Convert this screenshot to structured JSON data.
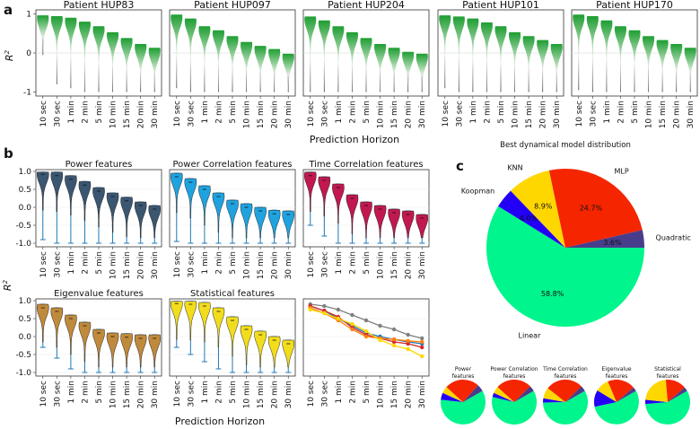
{
  "colors": {
    "linear": "#00f58c",
    "quadratic": "#483d8b",
    "mlp": "#f52500",
    "knn": "#ffd700",
    "koopman": "#2300f5",
    "power": "#3b5670",
    "powercorr": "#1fa3e0",
    "timecorr": "#c2184f",
    "eigen": "#c08a3c",
    "stat": "#f2dd1c",
    "green_top": "#1e9e32",
    "gray_bottom": "#3a3a3a",
    "whisker": "#1f77b4"
  },
  "panel_labels": {
    "a": "a",
    "b": "b",
    "c": "c"
  },
  "horizons": [
    "10 sec",
    "30 sec",
    "1 min",
    "2 min",
    "5 min",
    "10 min",
    "15 min",
    "20 min",
    "30 min"
  ],
  "r2_label": "R²",
  "r2_label_base": "R",
  "r2_label_sup": "2",
  "xlabel": "Prediction Horizon",
  "chart_data": [
    {
      "type": "violin",
      "panel": "a",
      "ylabel": "R²",
      "xlabel": "Prediction Horizon",
      "ylim": [
        -1.1,
        1.1
      ],
      "yticks": [
        -1,
        0,
        1
      ],
      "categories": [
        "10 sec",
        "30 sec",
        "1 min",
        "2 min",
        "5 min",
        "10 min",
        "15 min",
        "20 min",
        "30 min"
      ],
      "series": [
        {
          "name": "Patient HUP83",
          "medians": [
            0.88,
            0.86,
            0.82,
            0.72,
            0.6,
            0.45,
            0.3,
            0.15,
            0.05
          ],
          "mins": [
            -0.05,
            -0.8,
            -0.9,
            -1.0,
            -1.0,
            -1.0,
            -1.0,
            -1.0,
            -1.0
          ]
        },
        {
          "name": "Patient HUP097",
          "medians": [
            0.9,
            0.8,
            0.6,
            0.5,
            0.35,
            0.2,
            0.1,
            0.02,
            -0.1
          ],
          "mins": [
            -0.9,
            -1.0,
            -1.0,
            -1.0,
            -1.0,
            -1.0,
            -1.0,
            -1.0,
            -1.0
          ]
        },
        {
          "name": "Patient HUP204",
          "medians": [
            0.85,
            0.75,
            0.6,
            0.45,
            0.3,
            0.15,
            0.05,
            -0.05,
            -0.1
          ],
          "mins": [
            -1.0,
            -1.0,
            -1.0,
            -1.0,
            -1.0,
            -1.0,
            -1.0,
            -1.0,
            -1.0
          ]
        },
        {
          "name": "Patient HUP101",
          "medians": [
            0.88,
            0.85,
            0.8,
            0.7,
            0.6,
            0.45,
            0.35,
            0.25,
            0.15
          ],
          "mins": [
            -0.9,
            -1.0,
            -1.0,
            -1.0,
            -1.0,
            -1.0,
            -1.0,
            -1.0,
            -1.0
          ]
        },
        {
          "name": "Patient HUP170",
          "medians": [
            0.9,
            0.86,
            0.75,
            0.6,
            0.5,
            0.35,
            0.25,
            0.15,
            0.05
          ],
          "mins": [
            -0.95,
            -1.0,
            -1.0,
            -1.0,
            -1.0,
            -1.0,
            -1.0,
            -1.0,
            -1.0
          ]
        }
      ]
    },
    {
      "type": "violin",
      "panel": "b",
      "ylabel": "R²",
      "xlabel": "Prediction Horizon",
      "ylim": [
        -1.1,
        1.05
      ],
      "yticks": [
        -1.0,
        -0.5,
        0.0,
        0.5,
        1.0
      ],
      "categories": [
        "10 sec",
        "30 sec",
        "1 min",
        "2 min",
        "5 min",
        "10 min",
        "15 min",
        "20 min",
        "30 min"
      ],
      "series": [
        {
          "name": "Power features",
          "color": "power",
          "medians": [
            0.92,
            0.88,
            0.78,
            0.62,
            0.45,
            0.3,
            0.18,
            0.05,
            -0.05
          ],
          "mins": [
            -0.9,
            -1.0,
            -1.0,
            -1.0,
            -1.0,
            -1.0,
            -1.0,
            -1.0,
            -1.0
          ]
        },
        {
          "name": "Power Correlation features",
          "color": "powercorr",
          "medians": [
            0.85,
            0.7,
            0.5,
            0.3,
            0.1,
            0.0,
            -0.1,
            -0.18,
            -0.2
          ],
          "mins": [
            -0.95,
            -1.0,
            -1.0,
            -1.0,
            -1.0,
            -1.0,
            -1.0,
            -1.0,
            -1.0
          ]
        },
        {
          "name": "Time Correlation features",
          "color": "timecorr",
          "medians": [
            0.88,
            0.75,
            0.55,
            0.25,
            0.05,
            -0.05,
            -0.15,
            -0.2,
            -0.3
          ],
          "mins": [
            -0.5,
            -0.8,
            -1.0,
            -1.0,
            -1.0,
            -1.0,
            -1.0,
            -1.0,
            -1.0
          ]
        },
        {
          "name": "Eigenvalue features",
          "color": "eigen",
          "medians": [
            0.8,
            0.7,
            0.5,
            0.3,
            0.1,
            0.0,
            -0.02,
            -0.05,
            -0.05
          ],
          "mins": [
            -0.3,
            -0.6,
            -0.9,
            -1.0,
            -1.0,
            -1.0,
            -1.0,
            -1.0,
            -1.0
          ]
        },
        {
          "name": "Statistical features",
          "color": "stat",
          "medians": [
            0.92,
            0.9,
            0.85,
            0.7,
            0.45,
            0.2,
            0.05,
            -0.1,
            -0.2
          ],
          "mins": [
            -0.3,
            -0.5,
            -0.7,
            -0.9,
            -1.0,
            -1.0,
            -1.0,
            -1.0,
            -1.0
          ]
        }
      ]
    },
    {
      "type": "line",
      "panel": "b-summary",
      "ylim": [
        -1.1,
        1.05
      ],
      "categories": [
        "10 sec",
        "30 sec",
        "1 min",
        "2 min",
        "5 min",
        "10 min",
        "15 min",
        "20 min",
        "30 min"
      ],
      "series": [
        {
          "color": "#7f7f7f",
          "values": [
            0.9,
            0.85,
            0.75,
            0.6,
            0.45,
            0.3,
            0.2,
            0.05,
            -0.05
          ]
        },
        {
          "color": "#1f77b4",
          "values": [
            0.85,
            0.72,
            0.5,
            0.3,
            0.1,
            0.0,
            -0.08,
            -0.15,
            -0.2
          ]
        },
        {
          "color": "#d62728",
          "values": [
            0.85,
            0.72,
            0.55,
            0.25,
            0.05,
            -0.05,
            -0.15,
            -0.2,
            -0.3
          ]
        },
        {
          "color": "#ff7f0e",
          "values": [
            0.8,
            0.65,
            0.45,
            0.2,
            0.0,
            -0.05,
            -0.08,
            -0.12,
            -0.15
          ]
        },
        {
          "color": "#ffd700",
          "values": [
            0.75,
            0.65,
            0.5,
            0.35,
            0.15,
            -0.1,
            -0.25,
            -0.35,
            -0.55
          ]
        }
      ]
    },
    {
      "type": "pie",
      "panel": "c",
      "title": "Best dynamical model distribution",
      "slices": [
        {
          "label": "Linear",
          "value": 58.8,
          "pct": "58.8%",
          "color": "linear"
        },
        {
          "label": "Koopman",
          "value": 4.0,
          "pct": "4.0%",
          "color": "koopman"
        },
        {
          "label": "KNN",
          "value": 8.9,
          "pct": "8.9%",
          "color": "knn"
        },
        {
          "label": "MLP",
          "value": 24.7,
          "pct": "24.7%",
          "color": "mlp"
        },
        {
          "label": "Quadratic",
          "value": 3.6,
          "pct": "3.6%",
          "color": "quadratic"
        }
      ]
    },
    {
      "type": "pie",
      "panel": "c-small",
      "pies": [
        {
          "title": [
            "Power",
            "features"
          ],
          "slices": [
            {
              "color": "linear",
              "value": 60
            },
            {
              "color": "koopman",
              "value": 5
            },
            {
              "color": "knn",
              "value": 5
            },
            {
              "color": "mlp",
              "value": 25
            },
            {
              "color": "quadratic",
              "value": 5
            }
          ]
        },
        {
          "title": [
            "Power Correlation",
            "features"
          ],
          "slices": [
            {
              "color": "linear",
              "value": 62
            },
            {
              "color": "koopman",
              "value": 3
            },
            {
              "color": "knn",
              "value": 5
            },
            {
              "color": "mlp",
              "value": 26
            },
            {
              "color": "quadratic",
              "value": 4
            }
          ]
        },
        {
          "title": [
            "Time Correlation",
            "features"
          ],
          "slices": [
            {
              "color": "linear",
              "value": 58
            },
            {
              "color": "koopman",
              "value": 3
            },
            {
              "color": "knn",
              "value": 8
            },
            {
              "color": "mlp",
              "value": 27
            },
            {
              "color": "quadratic",
              "value": 4
            }
          ]
        },
        {
          "title": [
            "Eigenvalue",
            "features"
          ],
          "slices": [
            {
              "color": "linear",
              "value": 55
            },
            {
              "color": "koopman",
              "value": 12
            },
            {
              "color": "knn",
              "value": 10
            },
            {
              "color": "mlp",
              "value": 20
            },
            {
              "color": "quadratic",
              "value": 3
            }
          ]
        },
        {
          "title": [
            "Statistical",
            "features"
          ],
          "slices": [
            {
              "color": "linear",
              "value": 57
            },
            {
              "color": "koopman",
              "value": 3
            },
            {
              "color": "knn",
              "value": 22
            },
            {
              "color": "mlp",
              "value": 15
            },
            {
              "color": "quadratic",
              "value": 3
            }
          ]
        }
      ]
    }
  ]
}
